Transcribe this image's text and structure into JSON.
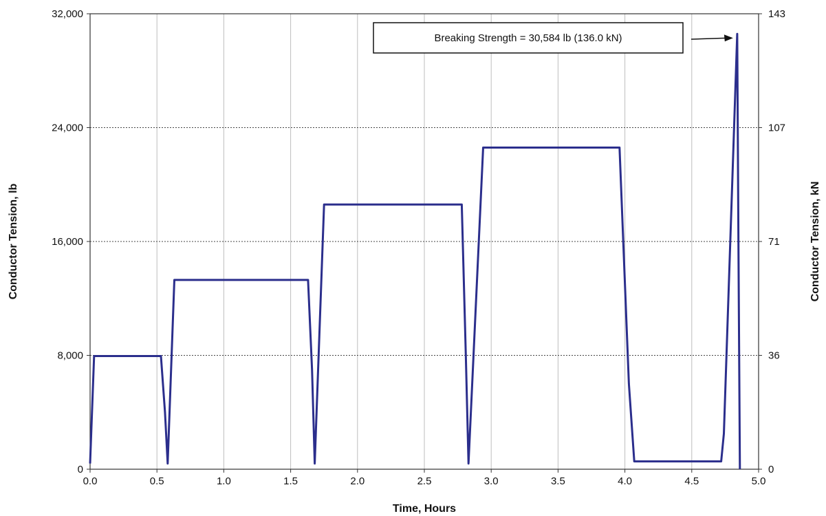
{
  "chart_data": {
    "type": "line",
    "xlabel": "Time, Hours",
    "ylabel": "Conductor Tension, lb",
    "y2label": "Conductor Tension, kN",
    "xlim": [
      0,
      5
    ],
    "ylim": [
      0,
      32000
    ],
    "x_ticks": [
      "0.0",
      "0.5",
      "1.0",
      "1.5",
      "2.0",
      "2.5",
      "3.0",
      "3.5",
      "4.0",
      "4.5",
      "5.0"
    ],
    "y_ticks": [
      "0",
      "8,000",
      "16,000",
      "24,000",
      "32,000"
    ],
    "y2_ticks": [
      "0",
      "36",
      "71",
      "107",
      "143"
    ],
    "grid": true,
    "series": [
      {
        "color": "#2b2e8c",
        "x": [
          0.0,
          0.03,
          0.53,
          0.56,
          0.58,
          0.63,
          1.63,
          1.66,
          1.68,
          1.75,
          2.78,
          2.81,
          2.83,
          2.94,
          3.96,
          4.03,
          4.07,
          4.72,
          4.74,
          4.84,
          4.85,
          4.86
        ],
        "y": [
          400,
          7950,
          7950,
          4000,
          400,
          13300,
          13300,
          7000,
          400,
          18600,
          18600,
          8000,
          400,
          22600,
          22600,
          6000,
          550,
          550,
          2500,
          30584,
          15000,
          0
        ]
      }
    ],
    "annotations": [
      {
        "text": "Breaking Strength = 30,584 lb (136.0 kN)",
        "x": 4.85,
        "y": 30584,
        "arrow": true
      }
    ]
  },
  "colors": {
    "line": "#2b2e8c",
    "grid_vertical": "#bdbdbd",
    "grid_horizontal": "#444444",
    "axis": "#333333"
  }
}
